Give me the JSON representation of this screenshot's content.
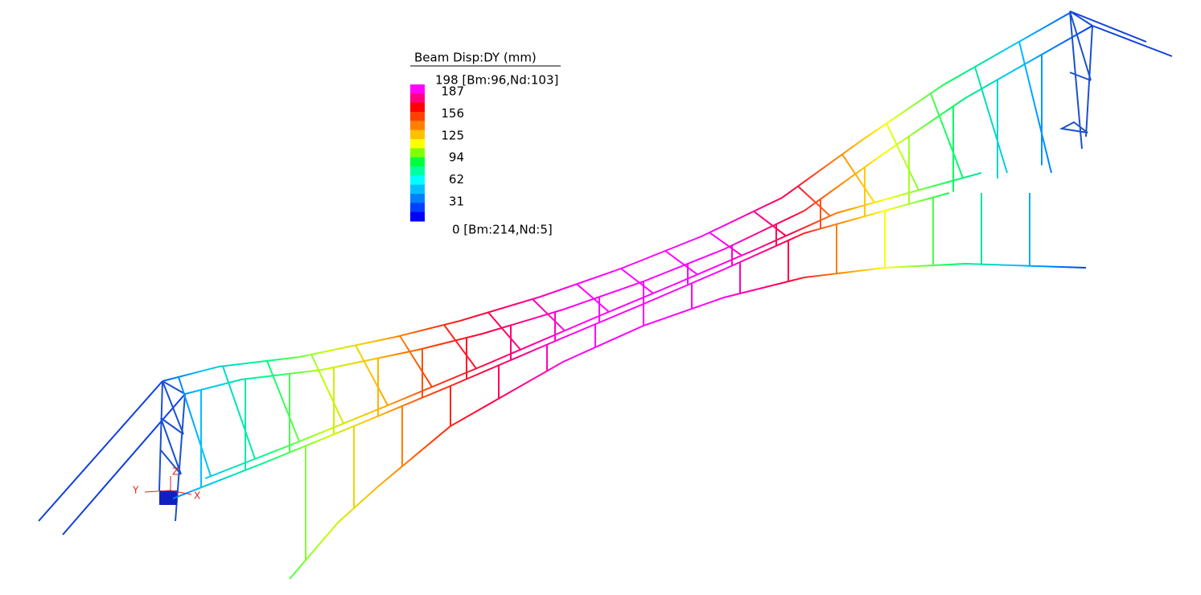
{
  "legend": {
    "title": "Beam Disp:DY  (mm)",
    "max_label": "198 [Bm:96,Nd:103]",
    "ticks": [
      "187",
      "156",
      "125",
      "94",
      "62",
      "31"
    ],
    "min_label": "0 [Bm:214,Nd:5]"
  },
  "axes": {
    "y": "Y",
    "z": "Z",
    "x": "X"
  }
}
